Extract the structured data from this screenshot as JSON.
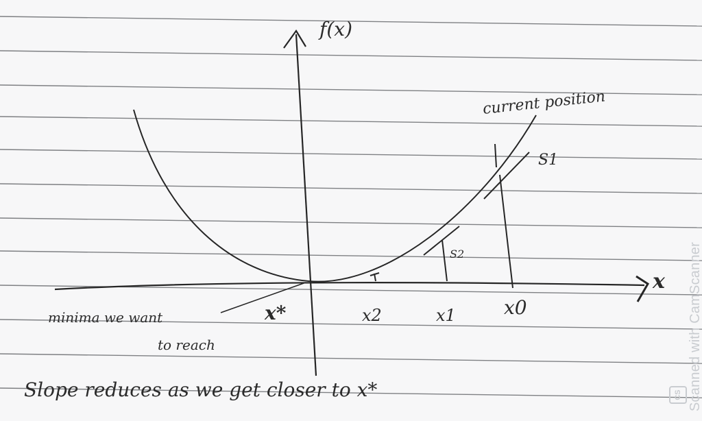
{
  "labels": {
    "y_axis": "f(x)",
    "x_axis": "x",
    "current_position": "current position",
    "s1": "S1",
    "s2": "S2",
    "x_star": "x*",
    "x2": "x2",
    "x1": "x1",
    "x0": "x0",
    "minima_line1": "minima we want",
    "minima_line2": "to reach",
    "caption": "Slope reduces as we get closer to x*"
  },
  "watermark": {
    "text": "Scanned with CamScanner",
    "badge": "CS"
  },
  "colors": {
    "paper": "#f7f7f8",
    "rule_line": "#55585c",
    "ink": "#262626",
    "watermark": "#c9ccd0"
  }
}
